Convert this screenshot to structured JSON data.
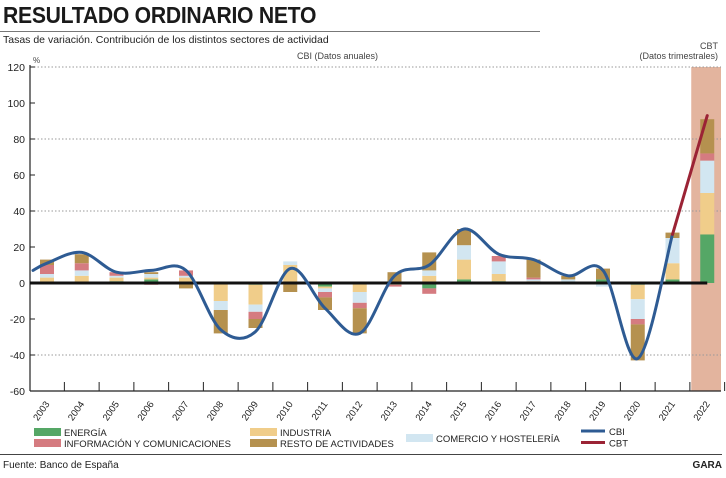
{
  "header": {
    "title": "RESULTADO ORDINARIO NETO",
    "subtitle": "Tasas de variación. Contribución de los distintos sectores de actividad"
  },
  "footer": {
    "source": "Fuente: Banco de España",
    "brand": "GARA"
  },
  "chart_data": {
    "type": "bar",
    "stacked": true,
    "ylabel": "%",
    "ylim": [
      -60,
      120
    ],
    "yticks": [
      120,
      100,
      80,
      60,
      40,
      20,
      0,
      -20,
      -40,
      -60
    ],
    "grid": "dotted at 120, 80, 40, -40",
    "annotations": {
      "annual": "CBI (Datos anuales)",
      "quarterly_1": "CBT",
      "quarterly_2": "(Datos trimestrales)"
    },
    "highlight_category": "2022",
    "categories": [
      "2003",
      "2004",
      "2005",
      "2006",
      "2007",
      "2008",
      "2009",
      "2010",
      "2011",
      "2012",
      "2013",
      "2014",
      "2015",
      "2016",
      "2017",
      "2018",
      "2019",
      "2020",
      "2021",
      "2022"
    ],
    "series": [
      {
        "name": "ENERGÍA",
        "color": "#55a766",
        "values": [
          0,
          0,
          1,
          2,
          0,
          0,
          -1,
          0,
          -2,
          0,
          0,
          -3,
          2,
          1,
          0,
          0,
          2,
          -1,
          2,
          27
        ]
      },
      {
        "name": "INDUSTRIA",
        "color": "#f0cd8a",
        "values": [
          3,
          4,
          2,
          1,
          3,
          -10,
          -11,
          10,
          -1,
          -5,
          -1,
          4,
          11,
          4,
          1,
          0,
          0,
          -8,
          9,
          23
        ]
      },
      {
        "name": "COMERCIO Y HOSTELERÍA",
        "color": "#d2e6f1",
        "values": [
          2,
          3,
          1,
          2,
          1,
          -5,
          -4,
          2,
          -2,
          -6,
          0,
          3,
          8,
          7,
          1,
          2,
          -2,
          -11,
          14,
          18
        ]
      },
      {
        "name": "INFORMACIÓN Y COMUNICACIONES",
        "color": "#d57b80",
        "values": [
          5,
          4,
          2,
          -1,
          3,
          0,
          -4,
          0,
          -3,
          -3,
          -1,
          -3,
          0,
          3,
          1,
          0,
          0,
          -3,
          0,
          4
        ]
      },
      {
        "name": "RESTO DE ACTIVIDADES",
        "color": "#b5914f",
        "values": [
          3,
          5,
          0,
          1,
          -3,
          -13,
          -5,
          -5,
          -7,
          -14,
          6,
          10,
          9,
          0,
          10,
          2,
          6,
          -20,
          3,
          19
        ]
      }
    ],
    "lines": [
      {
        "name": "CBI",
        "color": "#2e5b93",
        "x": [
          "2003",
          "2004",
          "2005",
          "2006",
          "2007",
          "2008",
          "2009",
          "2010",
          "2011",
          "2012",
          "2013",
          "2014",
          "2015",
          "2016",
          "2017",
          "2018",
          "2019",
          "2020",
          "2021"
        ],
        "values": [
          11,
          17,
          6,
          7,
          7,
          -26,
          -27,
          8,
          -14,
          -28,
          4,
          10,
          30,
          16,
          13,
          4,
          7,
          -42,
          27
        ]
      },
      {
        "name": "CBT",
        "color": "#9b2335",
        "x": [
          "2021",
          "2022"
        ],
        "values": [
          27,
          93
        ]
      }
    ]
  }
}
